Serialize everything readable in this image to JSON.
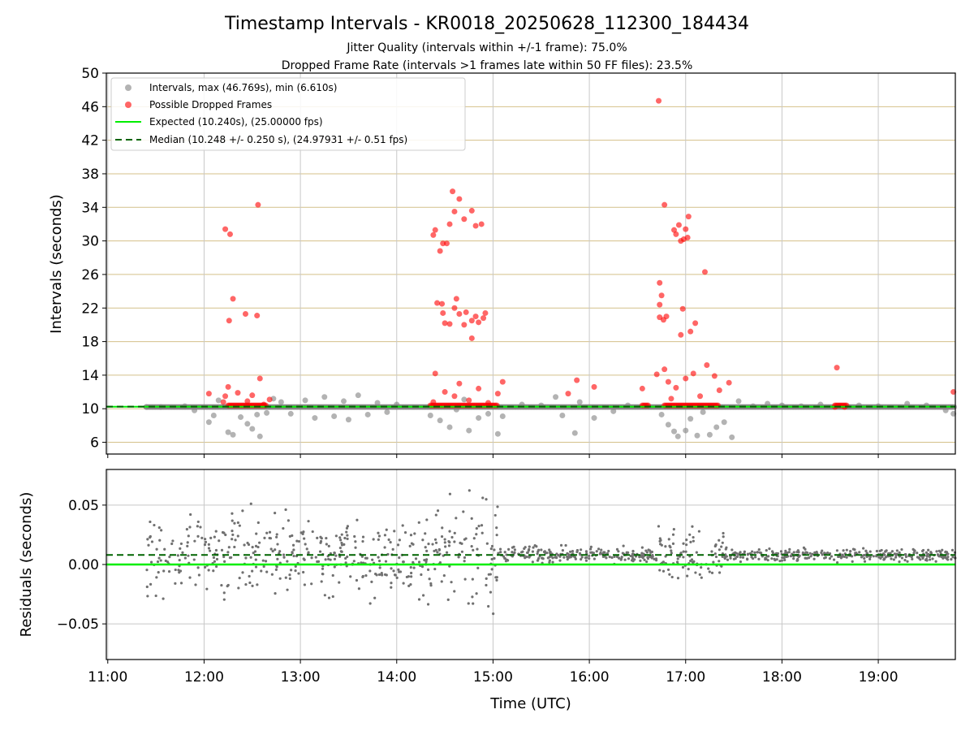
{
  "title": "Timestamp Intervals - KR0018_20250628_112300_184434",
  "subtitle_line1": "Jitter Quality (intervals within +/-1 frame): 75.0%",
  "subtitle_line2": "Dropped Frame Rate (intervals >1 frames late within 50 FF files): 23.5%",
  "colors": {
    "interval_gray": "#808080",
    "dropped_red": "#ff0000",
    "expected_green": "#00ee00",
    "median_darkgreen": "#006400",
    "hgrid": "#d4c08a",
    "vgrid": "#c8c8c8"
  },
  "chart_data": [
    {
      "type": "scatter",
      "ylabel": "Intervals (seconds)",
      "xlim_hours": [
        10.985,
        19.8
      ],
      "ylim": [
        4.6,
        50
      ],
      "yticks": [
        6,
        10,
        14,
        18,
        22,
        26,
        30,
        34,
        38,
        42,
        46,
        50
      ],
      "grid": true,
      "legend_position": "upper-left",
      "legend": [
        "Intervals, max (46.769s), min (6.610s)",
        "Possible Dropped Frames",
        "Expected (10.240s), (25.00000 fps)",
        "Median (10.248 +/- 0.250 s), (24.97931 +/- 0.51 fps)"
      ],
      "expected_interval": 10.24,
      "median_interval": 10.248,
      "interval_stats": {
        "max": 46.769,
        "min": 6.61
      },
      "series": [
        {
          "name": "Intervals, max (46.769s), min (6.610s)",
          "points": [
            [
              11.4,
              10.2
            ],
            [
              11.55,
              10.2
            ],
            [
              11.8,
              10.3
            ],
            [
              11.9,
              9.8
            ],
            [
              12.05,
              8.4
            ],
            [
              12.1,
              9.2
            ],
            [
              12.15,
              11.0
            ],
            [
              12.25,
              7.2
            ],
            [
              12.3,
              6.9
            ],
            [
              12.38,
              9.0
            ],
            [
              12.45,
              8.2
            ],
            [
              12.5,
              7.6
            ],
            [
              12.55,
              9.3
            ],
            [
              12.58,
              6.7
            ],
            [
              12.65,
              9.5
            ],
            [
              12.72,
              11.2
            ],
            [
              12.8,
              10.8
            ],
            [
              12.9,
              9.4
            ],
            [
              13.05,
              11.0
            ],
            [
              13.15,
              8.9
            ],
            [
              13.25,
              11.4
            ],
            [
              13.35,
              9.1
            ],
            [
              13.45,
              10.9
            ],
            [
              13.5,
              8.7
            ],
            [
              13.6,
              11.6
            ],
            [
              13.7,
              9.3
            ],
            [
              13.8,
              10.7
            ],
            [
              13.9,
              9.6
            ],
            [
              14.0,
              10.5
            ],
            [
              14.35,
              9.2
            ],
            [
              14.45,
              8.6
            ],
            [
              14.55,
              7.8
            ],
            [
              14.62,
              9.9
            ],
            [
              14.7,
              11.1
            ],
            [
              14.75,
              7.4
            ],
            [
              14.85,
              8.9
            ],
            [
              14.95,
              9.4
            ],
            [
              15.05,
              7.0
            ],
            [
              15.1,
              9.1
            ],
            [
              15.3,
              10.5
            ],
            [
              15.5,
              10.4
            ],
            [
              15.65,
              11.4
            ],
            [
              15.72,
              9.2
            ],
            [
              15.85,
              7.1
            ],
            [
              15.9,
              10.8
            ],
            [
              16.05,
              8.9
            ],
            [
              16.25,
              9.7
            ],
            [
              16.4,
              10.4
            ],
            [
              16.75,
              9.3
            ],
            [
              16.82,
              8.1
            ],
            [
              16.88,
              7.3
            ],
            [
              16.92,
              6.7
            ],
            [
              17.0,
              7.4
            ],
            [
              17.05,
              8.8
            ],
            [
              17.12,
              6.8
            ],
            [
              17.18,
              9.6
            ],
            [
              17.25,
              6.9
            ],
            [
              17.32,
              7.8
            ],
            [
              17.4,
              8.4
            ],
            [
              17.48,
              6.6
            ],
            [
              17.55,
              10.9
            ],
            [
              17.7,
              10.3
            ],
            [
              17.85,
              10.6
            ],
            [
              18.0,
              10.4
            ],
            [
              18.2,
              10.3
            ],
            [
              18.4,
              10.5
            ],
            [
              18.6,
              10.3
            ],
            [
              18.8,
              10.4
            ],
            [
              19.0,
              10.3
            ],
            [
              19.3,
              10.6
            ],
            [
              19.5,
              10.4
            ],
            [
              19.7,
              9.8
            ],
            [
              19.78,
              9.4
            ]
          ]
        },
        {
          "name": "Possible Dropped Frames",
          "points": [
            [
              12.05,
              11.8
            ],
            [
              12.2,
              10.8
            ],
            [
              12.22,
              11.5
            ],
            [
              12.25,
              12.6
            ],
            [
              12.22,
              31.4
            ],
            [
              12.27,
              30.8
            ],
            [
              12.3,
              23.1
            ],
            [
              12.26,
              20.5
            ],
            [
              12.43,
              21.3
            ],
            [
              12.55,
              21.1
            ],
            [
              12.56,
              34.3
            ],
            [
              12.58,
              13.6
            ],
            [
              12.35,
              11.9
            ],
            [
              12.45,
              10.9
            ],
            [
              12.5,
              11.6
            ],
            [
              12.62,
              10.5
            ],
            [
              12.68,
              11.1
            ],
            [
              14.38,
              10.8
            ],
            [
              14.4,
              31.3
            ],
            [
              14.38,
              30.7
            ],
            [
              14.45,
              28.8
            ],
            [
              14.48,
              29.7
            ],
            [
              14.52,
              29.7
            ],
            [
              14.55,
              32.0
            ],
            [
              14.58,
              35.9
            ],
            [
              14.6,
              33.5
            ],
            [
              14.65,
              35.0
            ],
            [
              14.7,
              32.6
            ],
            [
              14.78,
              33.6
            ],
            [
              14.82,
              31.8
            ],
            [
              14.88,
              32.0
            ],
            [
              14.42,
              22.6
            ],
            [
              14.47,
              22.5
            ],
            [
              14.48,
              21.4
            ],
            [
              14.5,
              20.2
            ],
            [
              14.55,
              20.1
            ],
            [
              14.6,
              22.0
            ],
            [
              14.62,
              23.1
            ],
            [
              14.65,
              21.3
            ],
            [
              14.7,
              20.0
            ],
            [
              14.72,
              21.5
            ],
            [
              14.78,
              20.5
            ],
            [
              14.82,
              21.0
            ],
            [
              14.85,
              20.3
            ],
            [
              14.9,
              20.8
            ],
            [
              14.92,
              21.4
            ],
            [
              14.78,
              18.4
            ],
            [
              14.4,
              14.2
            ],
            [
              14.65,
              13.0
            ],
            [
              14.5,
              12.0
            ],
            [
              14.6,
              11.5
            ],
            [
              14.75,
              11.0
            ],
            [
              14.85,
              12.4
            ],
            [
              14.95,
              10.7
            ],
            [
              15.05,
              11.8
            ],
            [
              15.1,
              13.2
            ],
            [
              15.78,
              11.8
            ],
            [
              15.87,
              13.4
            ],
            [
              16.05,
              12.6
            ],
            [
              16.55,
              12.4
            ],
            [
              16.7,
              14.1
            ],
            [
              16.72,
              46.7
            ],
            [
              16.78,
              34.3
            ],
            [
              16.73,
              25.0
            ],
            [
              16.75,
              23.5
            ],
            [
              16.73,
              22.4
            ],
            [
              16.8,
              21.0
            ],
            [
              16.73,
              20.9
            ],
            [
              16.77,
              20.6
            ],
            [
              16.88,
              31.3
            ],
            [
              16.9,
              30.8
            ],
            [
              16.93,
              31.9
            ],
            [
              16.95,
              30.0
            ],
            [
              16.98,
              30.2
            ],
            [
              17.02,
              30.4
            ],
            [
              17.03,
              32.9
            ],
            [
              17.0,
              31.4
            ],
            [
              16.95,
              18.8
            ],
            [
              17.05,
              19.2
            ],
            [
              17.1,
              20.2
            ],
            [
              16.97,
              21.9
            ],
            [
              17.2,
              26.3
            ],
            [
              16.78,
              14.7
            ],
            [
              16.82,
              13.2
            ],
            [
              16.9,
              12.5
            ],
            [
              17.0,
              13.6
            ],
            [
              17.08,
              14.2
            ],
            [
              17.22,
              15.2
            ],
            [
              17.3,
              13.9
            ],
            [
              17.45,
              13.1
            ],
            [
              17.35,
              12.2
            ],
            [
              16.85,
              11.2
            ],
            [
              17.15,
              11.5
            ],
            [
              18.57,
              14.9
            ],
            [
              18.55,
              10.2
            ],
            [
              18.65,
              10.2
            ],
            [
              19.78,
              12.0
            ]
          ]
        }
      ]
    },
    {
      "type": "scatter",
      "xlabel": "Time (UTC)",
      "ylabel": "Residuals (seconds)",
      "xlim_hours": [
        10.985,
        19.8
      ],
      "ylim": [
        -0.08,
        0.08
      ],
      "xticks": [
        "11:00",
        "12:00",
        "13:00",
        "14:00",
        "15:00",
        "16:00",
        "17:00",
        "18:00",
        "19:00"
      ],
      "yticks": [
        "0.05",
        "0.00",
        "−0.05"
      ],
      "grid": true,
      "expected_residual": 0.0,
      "median_residual": 0.008,
      "series": [
        {
          "name": "Residuals",
          "segments": [
            {
              "start": 11.4,
              "end": 14.5,
              "spread": 0.03
            },
            {
              "start": 14.5,
              "end": 15.05,
              "spread": 0.045
            },
            {
              "start": 15.05,
              "end": 16.7,
              "spread": 0.006
            },
            {
              "start": 16.7,
              "end": 17.4,
              "spread": 0.018
            },
            {
              "start": 17.4,
              "end": 19.8,
              "spread": 0.005
            }
          ]
        }
      ]
    }
  ]
}
